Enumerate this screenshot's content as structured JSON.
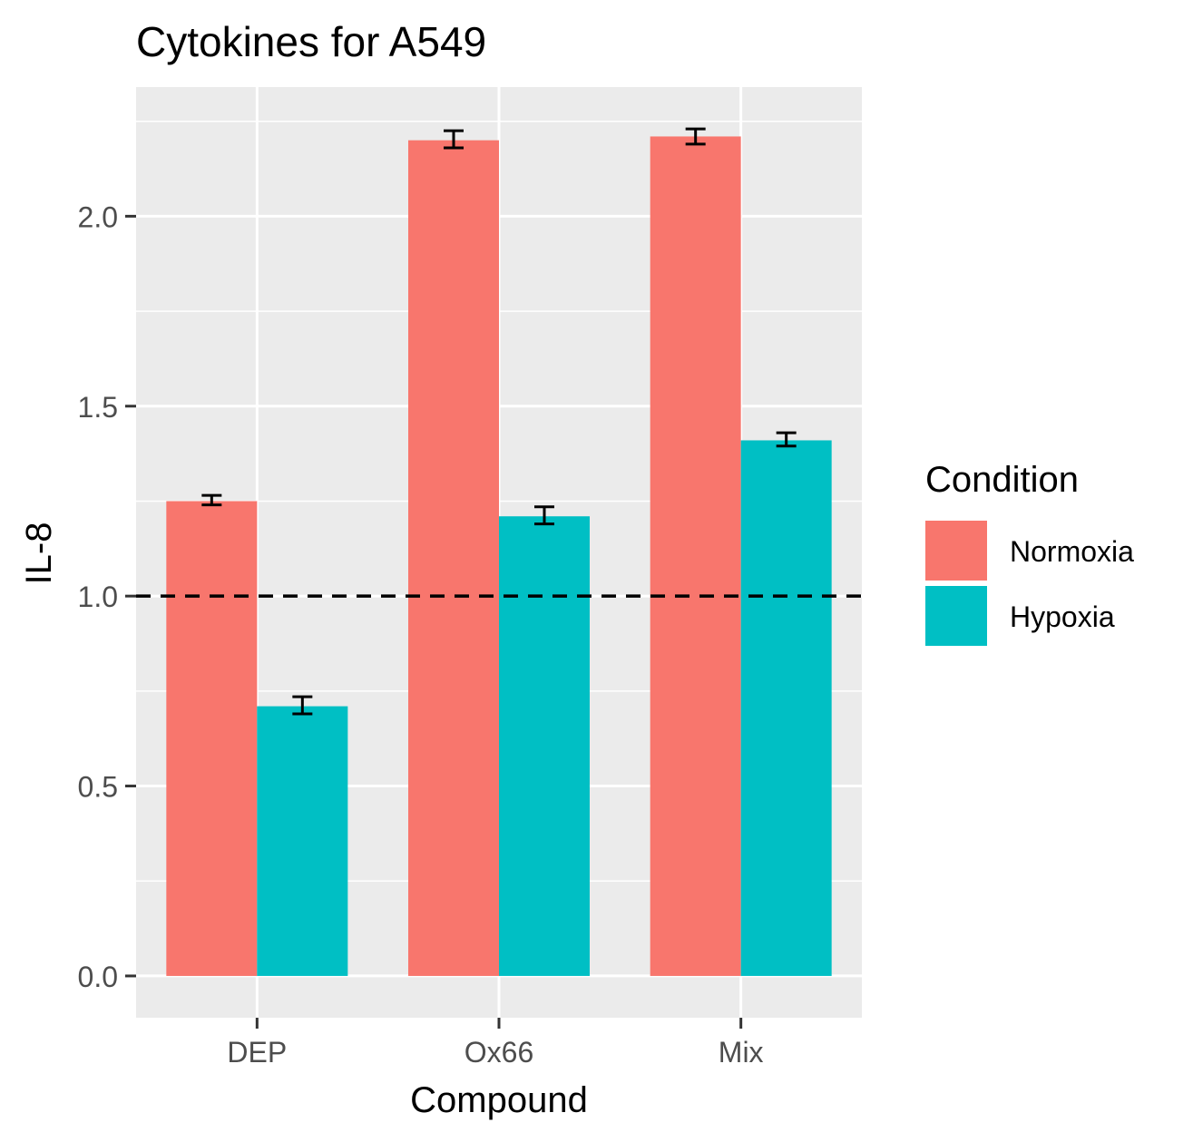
{
  "chart_data": {
    "type": "bar",
    "title": "Cytokines for A549",
    "xlabel": "Compound",
    "ylabel": "IL-8",
    "categories": [
      "DEP",
      "Ox66",
      "Mix"
    ],
    "series": [
      {
        "name": "Normoxia",
        "color": "#F8766D",
        "values": [
          1.25,
          2.2,
          2.21
        ],
        "err_low": [
          1.24,
          2.18,
          2.19
        ],
        "err_high": [
          1.265,
          2.225,
          2.23
        ]
      },
      {
        "name": "Hypoxia",
        "color": "#00BFC4",
        "values": [
          0.71,
          1.21,
          1.41
        ],
        "err_low": [
          0.69,
          1.19,
          1.395
        ],
        "err_high": [
          0.735,
          1.235,
          1.43
        ]
      }
    ],
    "ylim": [
      -0.11,
      2.34
    ],
    "yticks": [
      0.0,
      0.5,
      1.0,
      1.5,
      2.0
    ],
    "ytick_labels": [
      "0.0",
      "0.5",
      "1.0",
      "1.5",
      "2.0"
    ],
    "reference_line": {
      "y": 1.0,
      "style": "dashed",
      "color": "#000000"
    },
    "legend": {
      "title": "Condition",
      "position": "right"
    },
    "grid": true,
    "panel_background": "#EBEBEB",
    "grid_color": "#FFFFFF"
  }
}
